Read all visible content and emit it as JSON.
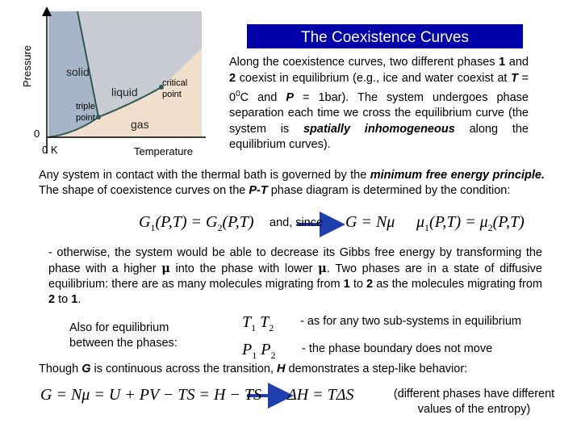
{
  "diagram": {
    "y_axis_label": "Pressure",
    "y_origin": "0",
    "x_origin": "0 K",
    "x_axis_label": "Temperature",
    "solid": "solid",
    "liquid": "liquid",
    "gas": "gas",
    "triple_point": [
      "triple",
      "point"
    ],
    "critical_point": [
      "critical",
      "point"
    ]
  },
  "title": "The Coexistence Curves",
  "intro": [
    "Along the coexistence curves, two different phases ",
    "1",
    " and ",
    "2",
    " coexist in equilibrium (e.g., ice and water coexist at ",
    "T",
    " = 0",
    "0",
    "C and ",
    "P",
    " = 1bar). The system undergoes phase separation each time we cross the equilibrium curve (the system is ",
    "spatially inhomogeneous",
    " along the equilibrium curves)."
  ],
  "principle": [
    "Any system in contact with the thermal bath is governed by the ",
    "minimum free energy principle.",
    " The shape of coexistence curves on the ",
    "P-T",
    " phase diagram is determined by the condition:"
  ],
  "condition": {
    "lhs": [
      "G",
      "1",
      "(P,T) = G",
      "2",
      "(P,T)"
    ],
    "since": "and, since",
    "gibbs": "G = Nμ",
    "result": [
      "μ",
      "1",
      "(P,T) = μ",
      "2",
      "(P,T)"
    ]
  },
  "otherwise": [
    "- otherwise, the system would be able to decrease its Gibbs free energy by transforming the phase with a higher ",
    "μ",
    " into the phase with lower ",
    "μ",
    ". Two phases are in a state of diffusive equilibrium: there are as many molecules migrating from ",
    "1",
    " to ",
    "2",
    " as the molecules migrating from ",
    "2",
    " to ",
    "1",
    "."
  ],
  "also": "Also for equilibrium between the phases:",
  "temperature_eq": [
    "T",
    "1",
    " T",
    "2"
  ],
  "temperature_note": "- as for any two sub-systems in equilibrium",
  "pressure_eq": [
    "P",
    "1",
    " P",
    "2"
  ],
  "pressure_note": "- the phase boundary does not move",
  "transition": [
    "Though ",
    "G",
    " is continuous across the transition, ",
    "H",
    " demonstrates a step-like behavior:"
  ],
  "enthalpy": "G = Nμ = U + PV − TS = H − TS",
  "entropy_jump": "ΔH = TΔS",
  "entropy_note": [
    "(different phases have different",
    "values of the entropy)"
  ]
}
